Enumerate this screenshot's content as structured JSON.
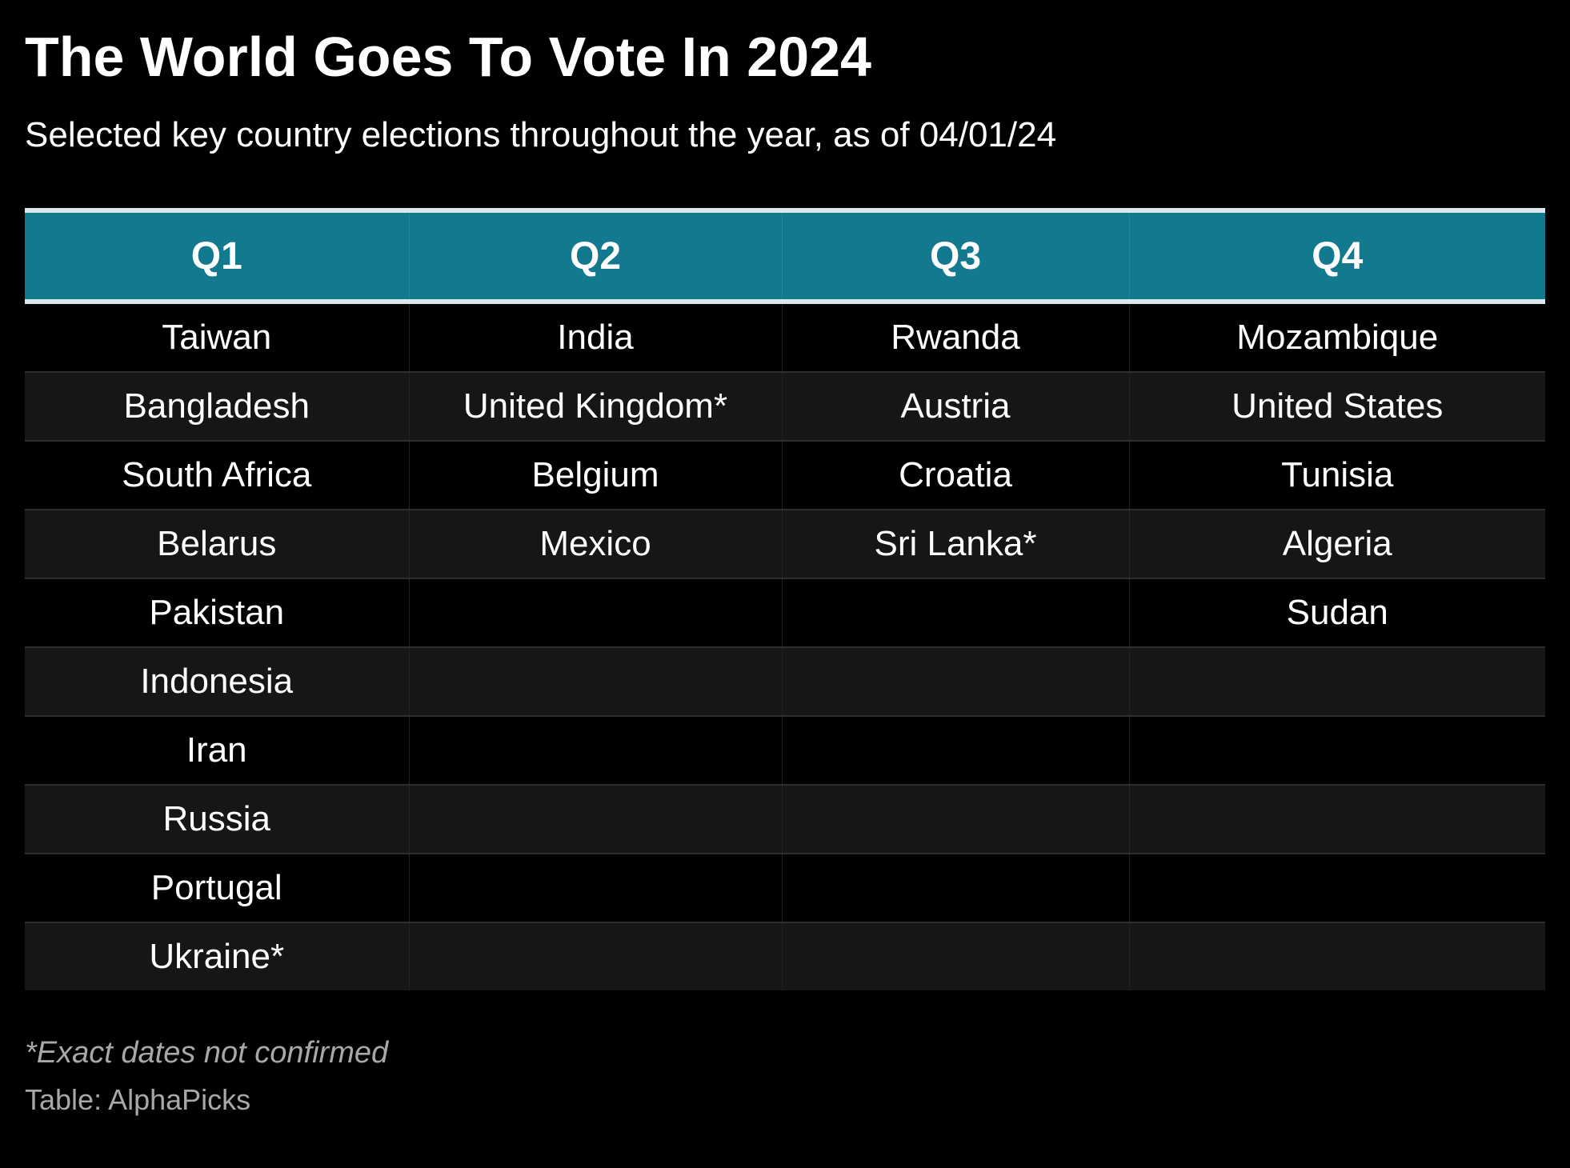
{
  "title": "The World Goes To Vote In 2024",
  "subtitle": "Selected key country elections throughout the year, as of 04/01/24",
  "footnote": "*Exact dates not confirmed",
  "source": "Table: AlphaPicks",
  "colors": {
    "header_bg": "#13798f",
    "background": "#000000",
    "alt_row": "#161616"
  },
  "chart_data": {
    "type": "table",
    "columns": [
      "Q1",
      "Q2",
      "Q3",
      "Q4"
    ],
    "rows": [
      [
        "Taiwan",
        "India",
        "Rwanda",
        "Mozambique"
      ],
      [
        "Bangladesh",
        "United Kingdom*",
        "Austria",
        "United States"
      ],
      [
        "South Africa",
        "Belgium",
        "Croatia",
        "Tunisia"
      ],
      [
        "Belarus",
        "Mexico",
        "Sri Lanka*",
        "Algeria"
      ],
      [
        "Pakistan",
        "",
        "",
        "Sudan"
      ],
      [
        "Indonesia",
        "",
        "",
        ""
      ],
      [
        "Iran",
        "",
        "",
        ""
      ],
      [
        "Russia",
        "",
        "",
        ""
      ],
      [
        "Portugal",
        "",
        "",
        ""
      ],
      [
        "Ukraine*",
        "",
        "",
        ""
      ]
    ]
  }
}
